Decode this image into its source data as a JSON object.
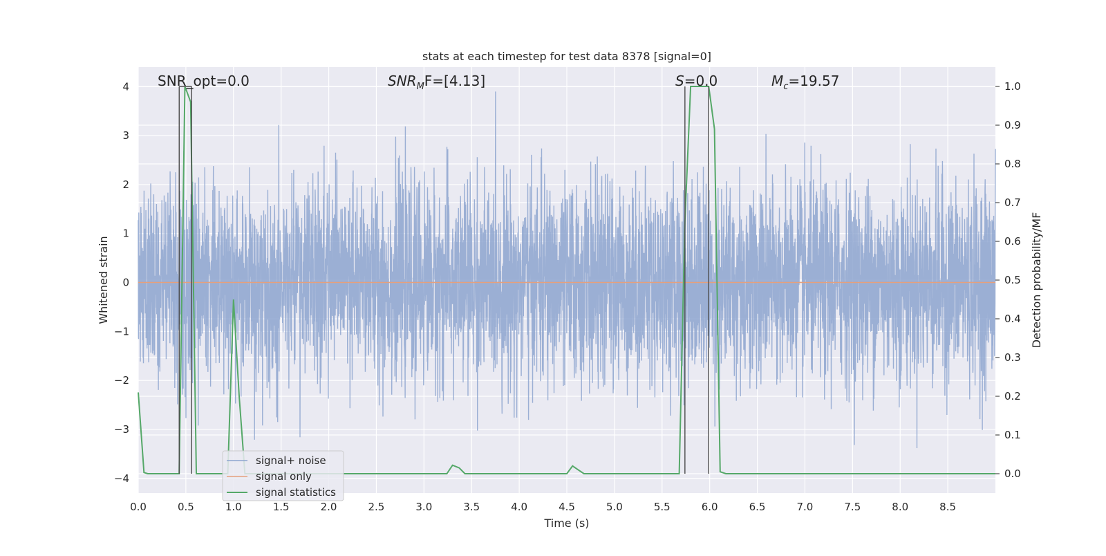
{
  "chart_data": {
    "type": "line",
    "title": "stats at each timestep for test data 8378 [signal=0]",
    "xlabel": "Time (s)",
    "ylabel_left": "Whitened strain",
    "ylabel_right": "Detection probability/MF",
    "xlim": [
      0.0,
      9.0
    ],
    "ylim_left": [
      -4.3,
      4.4
    ],
    "ylim_right": [
      -0.05,
      1.05
    ],
    "x_ticks": [
      "0.0",
      "0.5",
      "1.0",
      "1.5",
      "2.0",
      "2.5",
      "3.0",
      "3.5",
      "4.0",
      "4.5",
      "5.0",
      "5.5",
      "6.0",
      "6.5",
      "7.0",
      "7.5",
      "8.0",
      "8.5"
    ],
    "y_ticks_left": [
      "−4",
      "−3",
      "−2",
      "−1",
      "0",
      "1",
      "2",
      "3",
      "4"
    ],
    "y_ticks_right": [
      "0.0",
      "0.1",
      "0.2",
      "0.3",
      "0.4",
      "0.5",
      "0.6",
      "0.7",
      "0.8",
      "0.9",
      "1.0"
    ],
    "grid": true,
    "legend_position": "lower-left",
    "annotations": {
      "snr_opt": "SNR_opt=0.0",
      "snr_mf_main": "SNR",
      "snr_mf_sub": "M",
      "snr_mf_rest": "F=[4.13]",
      "s_main": "S",
      "s_rest": "=0.0",
      "mc_main": "M",
      "mc_sub": "c",
      "mc_rest": "=19.57"
    },
    "series": [
      {
        "name": "signal+ noise",
        "color": "#8da5cf",
        "description_values": "whitened noisy strain, approx. amplitude range -3.8 to 3.9"
      },
      {
        "name": "signal only",
        "color": "#e5a07d",
        "x": [
          0.0,
          9.0
        ],
        "y": [
          0.0,
          0.0
        ]
      },
      {
        "name": "signal statistics",
        "color": "#55a868",
        "axis": "right",
        "x": [
          0.0,
          0.06,
          0.1,
          0.37,
          0.43,
          0.49,
          0.55,
          0.61,
          0.67,
          0.73,
          0.94,
          1.0,
          1.06,
          1.12,
          1.18,
          3.24,
          3.3,
          3.37,
          3.43,
          4.5,
          4.56,
          4.62,
          4.68,
          5.68,
          5.74,
          5.8,
          5.86,
          5.93,
          5.99,
          6.05,
          6.11,
          6.17,
          6.23,
          9.0
        ],
        "y": [
          0.21,
          0.003,
          0.0,
          0.0,
          0.0,
          1.0,
          0.96,
          0.0,
          0.0,
          0.0,
          0.0,
          0.45,
          0.2,
          0.0,
          0.0,
          0.0,
          0.022,
          0.015,
          0.0,
          0.0,
          0.02,
          0.01,
          0.0,
          0.0,
          0.65,
          1.0,
          1.0,
          1.0,
          1.0,
          0.89,
          0.005,
          0.0,
          0.0,
          0.0
        ]
      }
    ],
    "vertical_markers": [
      0.43,
      0.56,
      5.74,
      5.99
    ]
  }
}
